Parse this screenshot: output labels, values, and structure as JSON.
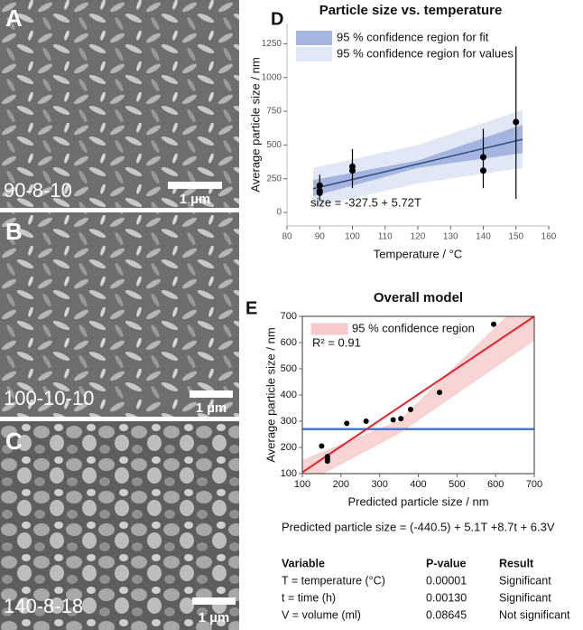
{
  "images": [
    {
      "letter": "A",
      "caption": "90-8-10",
      "scale": "1 µm"
    },
    {
      "letter": "B",
      "caption": "100-10-10",
      "scale": "1 µm"
    },
    {
      "letter": "C",
      "caption": "140-8-18",
      "scale": "1 µm"
    }
  ],
  "chart_data": [
    {
      "type": "scatter",
      "letter": "D",
      "title": "Particle size vs. temperature",
      "x_label": "Temperature / °C",
      "y_label": "Average particle size / nm",
      "annotation": "size = -327.5 + 5.72T",
      "xlim": [
        80,
        160
      ],
      "xticks": [
        80,
        90,
        100,
        110,
        120,
        130,
        140,
        150,
        160
      ],
      "ylim": [
        -100,
        1400
      ],
      "yticks": [
        0,
        250,
        500,
        750,
        1000,
        1250
      ],
      "bands": [
        {
          "name": "95 % confidence region for fit",
          "color": "#a6b5df",
          "x": [
            88,
            120,
            152
          ],
          "lower": [
            120,
            330,
            440
          ],
          "upper": [
            240,
            385,
            650
          ]
        },
        {
          "name": "95 % confidence region for values",
          "color": "#e2e7f5",
          "x": [
            88,
            120,
            152
          ],
          "lower": [
            40,
            215,
            330
          ],
          "upper": [
            330,
            500,
            760
          ]
        }
      ],
      "fit": {
        "color": "#2d4b7c",
        "x": [
          88,
          152
        ],
        "values": [
          176,
          542
        ]
      },
      "points": {
        "color": "#000000",
        "x": [
          90,
          90,
          90,
          100,
          100,
          140,
          140,
          150
        ],
        "values": [
          200,
          160,
          145,
          340,
          310,
          410,
          310,
          670
        ]
      },
      "errors": {
        "x": [
          90,
          100,
          140,
          150
        ],
        "low": [
          90,
          180,
          180,
          100
        ],
        "high": [
          280,
          470,
          620,
          1230
        ]
      }
    },
    {
      "type": "scatter",
      "letter": "E",
      "title": "Overall model",
      "x_label": "Predicted particle size / nm",
      "y_label": "Average particle size / nm",
      "annotation": "R² = 0.91",
      "xlim": [
        100,
        700
      ],
      "xticks": [
        100,
        200,
        300,
        400,
        500,
        600,
        700
      ],
      "ylim": [
        100,
        700
      ],
      "yticks": [
        100,
        200,
        300,
        400,
        500,
        600,
        700
      ],
      "bands": [
        {
          "name": "95 % confidence region",
          "color": "#f7c9cb",
          "x": [
            100,
            350,
            700
          ],
          "lower": [
            60,
            255,
            610
          ],
          "upper": [
            150,
            300,
            800
          ]
        }
      ],
      "fit": {
        "color": "#e3202b",
        "x": [
          100,
          700
        ],
        "values": [
          105,
          700
        ]
      },
      "mean_line": {
        "color": "#4a78d0",
        "value": 270
      },
      "points": {
        "color": "#000000",
        "x": [
          150,
          165,
          165,
          165,
          215,
          265,
          335,
          355,
          380,
          455,
          595
        ],
        "values": [
          205,
          165,
          155,
          148,
          292,
          300,
          305,
          310,
          345,
          410,
          670
        ]
      }
    }
  ],
  "equation": "Predicted particle size = (-440.5) + 5.1T +8.7t + 6.3V",
  "table": {
    "header": [
      "Variable",
      "P-value",
      "Result"
    ],
    "rows": [
      [
        "T = temperature (°C)",
        "0.00001",
        "Significant"
      ],
      [
        "t =  time (h)",
        "0.00130",
        "Significant"
      ],
      [
        "V = volume (ml)",
        "0.08645",
        "Not significant"
      ]
    ]
  }
}
